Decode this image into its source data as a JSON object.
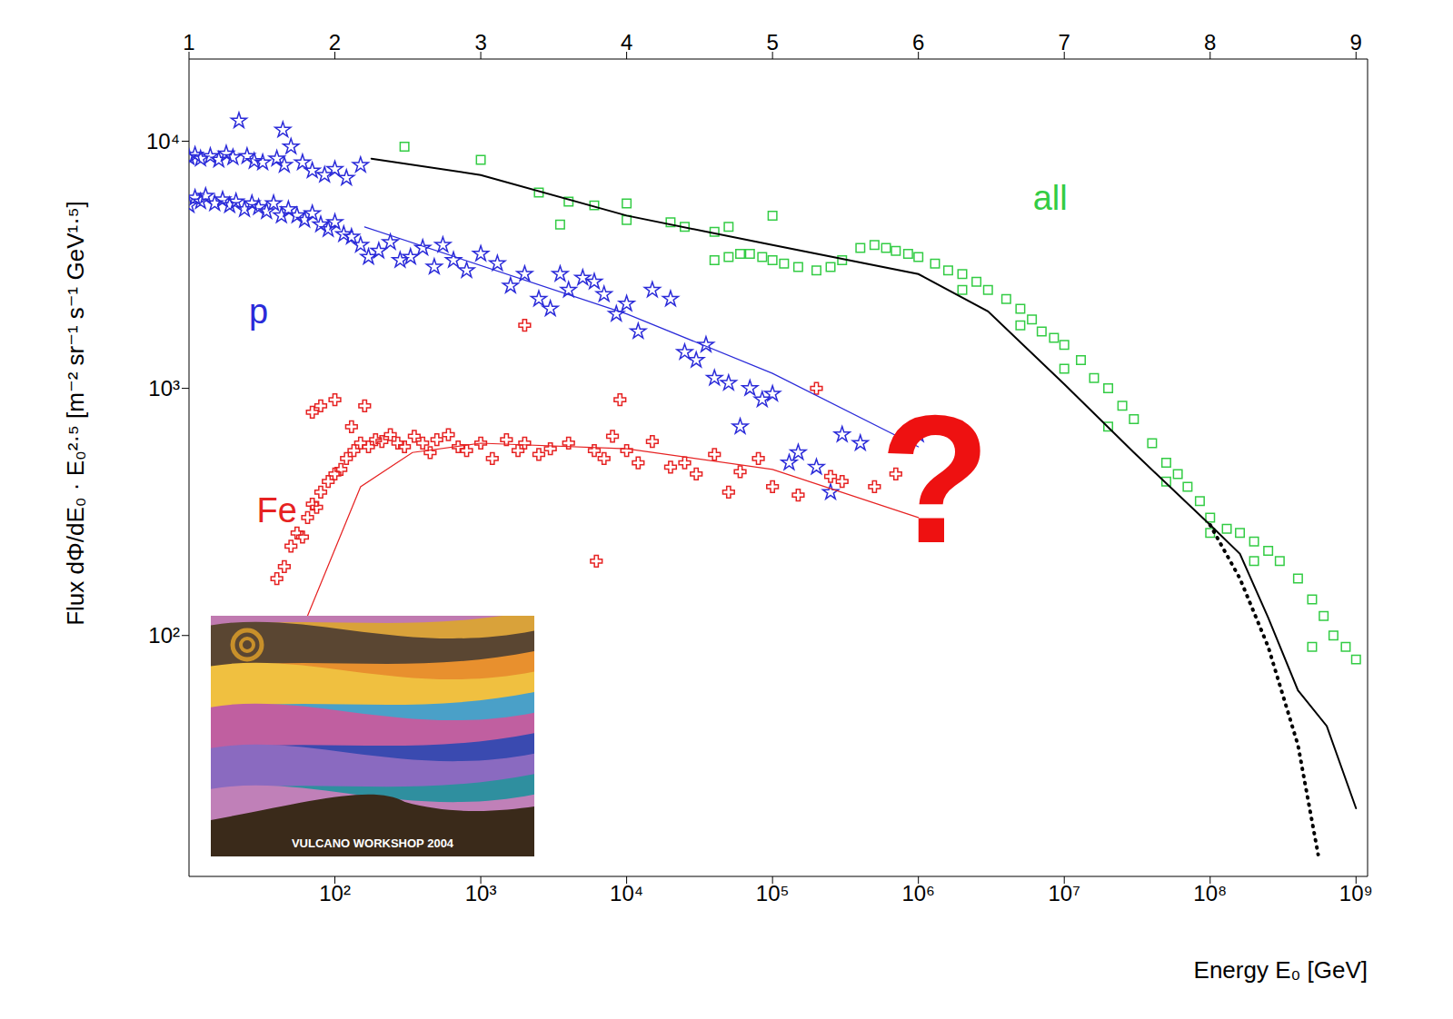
{
  "chart_data": {
    "type": "scatter",
    "log": true,
    "x_label": "Energy E₀ [GeV]",
    "y_label": "Flux dΦ/dE₀ · E₀²·⁵ [m⁻² sr⁻¹ s⁻¹ GeV¹·⁵]",
    "xlim": [
      10,
      1200000000
    ],
    "ylim": [
      10.6,
      21500
    ],
    "xticks": [
      {
        "value": 100,
        "label": "10²"
      },
      {
        "value": 1000,
        "label": "10³"
      },
      {
        "value": 10000,
        "label": "10⁴"
      },
      {
        "value": 100000,
        "label": "10⁵"
      },
      {
        "value": 1000000,
        "label": "10⁶"
      },
      {
        "value": 10000000,
        "label": "10⁷"
      },
      {
        "value": 100000000,
        "label": "10⁸"
      },
      {
        "value": 1000000000,
        "label": "10⁹"
      }
    ],
    "yticks": [
      {
        "value": 100,
        "label": "10²"
      },
      {
        "value": 1000,
        "label": "10³"
      },
      {
        "value": 10000,
        "label": "10⁴"
      }
    ],
    "top_ticks": [
      {
        "value": 10,
        "label": "1"
      },
      {
        "value": 100,
        "label": "2"
      },
      {
        "value": 1000,
        "label": "3"
      },
      {
        "value": 10000,
        "label": "4"
      },
      {
        "value": 100000,
        "label": "5"
      },
      {
        "value": 1000000,
        "label": "6"
      },
      {
        "value": 10000000,
        "label": "7"
      },
      {
        "value": 100000000,
        "label": "8"
      },
      {
        "value": 1000000000,
        "label": "9"
      }
    ],
    "series": [
      {
        "name": "p",
        "color": "#2b2bd9",
        "marker": "star",
        "label_at": [
          30,
          2050
        ],
        "x": [
          10,
          11,
          12,
          14,
          16,
          18,
          20,
          22,
          25,
          28,
          32,
          44,
          40,
          45,
          50,
          60,
          70,
          85,
          100,
          120,
          150,
          10,
          11,
          12,
          13,
          15,
          17,
          19,
          21,
          24,
          27,
          30,
          34,
          38,
          43,
          48,
          55,
          62,
          70,
          80,
          90,
          100,
          115,
          130,
          150,
          170,
          200,
          240,
          280,
          330,
          400,
          480,
          550,
          650,
          800,
          1000,
          1300,
          1600,
          2000,
          2500,
          3000,
          3500,
          4000,
          5000,
          6000,
          7000,
          8500,
          10000,
          12000,
          15000,
          20000,
          25000,
          30000,
          35000,
          40000,
          50000,
          60000,
          70000,
          85000,
          100000,
          130000,
          150000,
          200000,
          250000,
          300000,
          400000,
          1000000
        ],
        "values": [
          8600,
          8800,
          8500,
          8700,
          8400,
          8900,
          8600,
          12100,
          8700,
          8300,
          8200,
          11100,
          8500,
          8000,
          9500,
          8200,
          7600,
          7300,
          7700,
          7100,
          8000,
          5500,
          5900,
          5700,
          6000,
          5600,
          5800,
          5500,
          5700,
          5300,
          5600,
          5400,
          5200,
          5600,
          5000,
          5300,
          5000,
          4800,
          5100,
          4600,
          4400,
          4700,
          4200,
          4100,
          3800,
          3400,
          3600,
          3900,
          3300,
          3400,
          3700,
          3100,
          3800,
          3300,
          3000,
          3500,
          3200,
          2600,
          2900,
          2300,
          2100,
          2900,
          2500,
          2800,
          2700,
          2400,
          2000,
          2200,
          1700,
          2500,
          2300,
          1400,
          1300,
          1500,
          1100,
          1050,
          700,
          1000,
          900,
          950,
          500,
          550,
          480,
          380,
          650,
          600,
          650
        ]
      },
      {
        "name": "Fe",
        "color": "#e62222",
        "marker": "cross",
        "label_at": [
          40,
          320
        ],
        "x": [
          40,
          45,
          50,
          55,
          60,
          65,
          70,
          75,
          80,
          90,
          100,
          110,
          120,
          135,
          150,
          170,
          190,
          210,
          240,
          270,
          300,
          350,
          400,
          450,
          500,
          600,
          700,
          800,
          1000,
          1200,
          1500,
          1800,
          2000,
          2500,
          3000,
          4000,
          6200,
          6000,
          7000,
          8000,
          10000,
          12000,
          15000,
          20000,
          25000,
          30000,
          40000,
          50000,
          60000,
          80000,
          100000,
          150000,
          200000,
          250000,
          300000,
          500000,
          700000,
          70,
          80,
          100,
          130,
          160,
          2000,
          9000
        ],
        "values": [
          170,
          190,
          230,
          260,
          250,
          300,
          340,
          330,
          380,
          420,
          450,
          470,
          520,
          560,
          600,
          580,
          620,
          610,
          650,
          600,
          580,
          640,
          600,
          550,
          620,
          650,
          580,
          560,
          600,
          520,
          620,
          560,
          600,
          540,
          570,
          600,
          200,
          560,
          520,
          640,
          560,
          500,
          610,
          480,
          500,
          450,
          540,
          380,
          460,
          520,
          400,
          370,
          1000,
          440,
          420,
          400,
          450,
          800,
          850,
          900,
          700,
          850,
          1800,
          900
        ]
      },
      {
        "name": "all",
        "color": "#33cc44",
        "marker": "square",
        "label_at": [
          8000000,
          5900
        ],
        "x": [
          300,
          1000,
          3500,
          10000,
          20000,
          50000,
          2500,
          4000,
          6000,
          10000,
          25000,
          40000,
          100000,
          40000,
          50000,
          60000,
          70000,
          85000,
          100000,
          120000,
          150000,
          200000,
          250000,
          300000,
          400000,
          500000,
          600000,
          700000,
          850000,
          1000000,
          1300000,
          1600000,
          2000000,
          2500000,
          3000000,
          4000000,
          5000000,
          6000000,
          7000000,
          8500000,
          10000000,
          13000000,
          16000000,
          20000000,
          25000000,
          30000000,
          40000000,
          50000000,
          60000000,
          70000000,
          85000000,
          100000000,
          130000000,
          160000000,
          200000000,
          250000000,
          300000000,
          400000000,
          500000000,
          600000000,
          700000000,
          850000000,
          1000000000,
          2000000,
          5000000,
          10000000,
          20000000,
          50000000,
          100000000,
          200000000,
          500000000
        ],
        "values": [
          9500,
          8400,
          4600,
          4800,
          4700,
          4500,
          6200,
          5700,
          5500,
          5600,
          4500,
          4300,
          5000,
          3300,
          3400,
          3500,
          3500,
          3400,
          3300,
          3200,
          3100,
          3000,
          3100,
          3300,
          3700,
          3800,
          3700,
          3600,
          3500,
          3400,
          3200,
          3000,
          2900,
          2700,
          2500,
          2300,
          2100,
          1900,
          1700,
          1600,
          1500,
          1300,
          1100,
          1000,
          850,
          750,
          600,
          500,
          450,
          400,
          350,
          300,
          270,
          260,
          240,
          220,
          200,
          170,
          140,
          120,
          100,
          90,
          80,
          2500,
          1800,
          1200,
          700,
          420,
          260,
          200,
          90
        ]
      },
      {
        "type": "line",
        "line_style": "solid",
        "color": "#2b2bd9",
        "x": [
          160,
          10000,
          100000,
          1000000
        ],
        "values": [
          4500,
          2000,
          1150,
          580
        ]
      },
      {
        "type": "line",
        "line_style": "solid",
        "color": "#e62222",
        "x": [
          63,
          150,
          340,
          1000,
          10000,
          100000,
          1000000
        ],
        "values": [
          115,
          400,
          550,
          600,
          570,
          470,
          300
        ]
      },
      {
        "type": "line",
        "line_style": "solid",
        "color": "#000000",
        "x": [
          178,
          1000,
          10000,
          100000,
          1000000,
          3000000,
          10000000,
          30000000,
          100000000,
          160000000,
          250000000,
          400000000,
          630000000,
          1000000000
        ],
        "values": [
          8500,
          7300,
          5000,
          3800,
          2900,
          2050,
          1040,
          550,
          280,
          214,
          118,
          60,
          43,
          20
        ]
      },
      {
        "type": "line",
        "line_style": "dotted",
        "color": "#000000",
        "x": [
          100000000,
          160000000,
          250000000,
          400000000,
          550000000
        ],
        "values": [
          280,
          170,
          90,
          36,
          13
        ]
      }
    ],
    "annotations": [
      {
        "text": "?",
        "x": 1300000,
        "y": 430,
        "color": "#ee1111"
      }
    ],
    "inset_text": "VULCANO WORKSHOP 2004"
  }
}
